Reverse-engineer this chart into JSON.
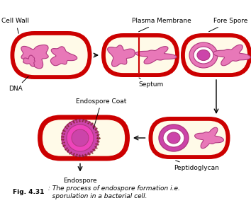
{
  "title_bold": "Fig. 4.31",
  "title_rest": " : The process of endospore formation i.e.\n   sporulation in a bacterial cell.",
  "labels": {
    "cell_wall": "Cell Wall",
    "plasma_membrane": "Plasma Membrane",
    "dna": "DNA",
    "septum": "Septum",
    "fore_spore": "Fore Spore",
    "endospore_coat": "Endospore Coat",
    "endospore": "Endospore",
    "peptidoglycan": "Peptidoglycan"
  },
  "colors": {
    "outer_wall": "#cc0000",
    "cell_fill": "#fffae8",
    "dna_pink": "#e878b8",
    "dna_dark": "#b03880",
    "spore_magenta": "#cc44aa",
    "spore_light": "#f090d0",
    "spore_white": "#ffffff",
    "black": "#000000",
    "background": "#ffffff",
    "dot_color": "#8b3050"
  },
  "font_size_label": 6.5,
  "font_size_title": 6.5,
  "fig_width": 3.54,
  "fig_height": 2.87
}
